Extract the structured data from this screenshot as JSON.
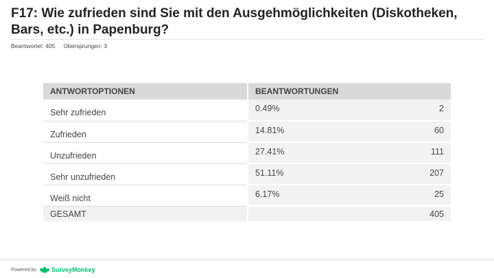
{
  "question": {
    "title": "F17: Wie zufrieden sind Sie mit den Ausgehmöglichkeiten (Diskotheken, Bars, etc.) in Papenburg?",
    "answered": "Beantwortet: 405",
    "skipped": "Übersprungen: 3"
  },
  "table": {
    "headers": {
      "options": "ANTWORTOPTIONEN",
      "responses": "BEANTWORTUNGEN"
    },
    "rows": [
      {
        "label": "Sehr zufrieden",
        "percent": "0.49%",
        "count": "2"
      },
      {
        "label": "Zufrieden",
        "percent": "14.81%",
        "count": "60"
      },
      {
        "label": "Unzufrieden",
        "percent": "27.41%",
        "count": "111"
      },
      {
        "label": "Sehr unzufrieden",
        "percent": "51.11%",
        "count": "207"
      },
      {
        "label": "Weiß nicht",
        "percent": "6.17%",
        "count": "25"
      }
    ],
    "total": {
      "label": "GESAMT",
      "count": "405"
    }
  },
  "footer": {
    "powered_by": "Powered by",
    "brand": "SurveyMonkey",
    "brand_color": "#00bf6f"
  }
}
